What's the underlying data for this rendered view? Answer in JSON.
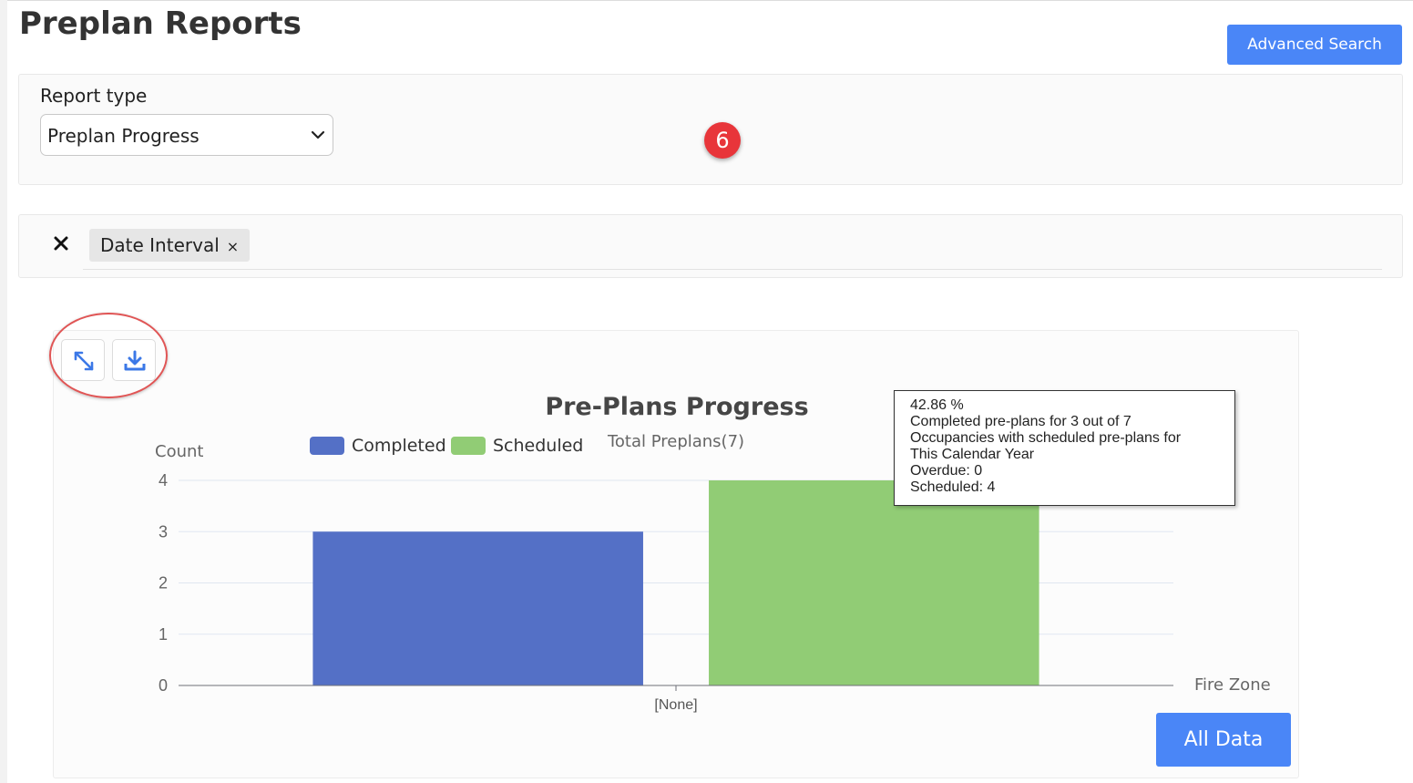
{
  "page": {
    "title": "Preplan Reports"
  },
  "header": {
    "advanced_search_label": "Advanced Search"
  },
  "report": {
    "label": "Report type",
    "selected": "Preplan Progress"
  },
  "step_badge": "6",
  "filters": {
    "chips": [
      {
        "label": "Date Interval",
        "remove": "×"
      }
    ]
  },
  "chart_tools": {
    "expand_icon": "expand-icon",
    "download_icon": "download-icon"
  },
  "chart_data": {
    "type": "bar",
    "title": "Pre-Plans Progress",
    "subtitle": "Total Preplans(7)",
    "ylabel": "Count",
    "xlabel": "Fire Zone",
    "categories": [
      "[None]"
    ],
    "series": [
      {
        "name": "Completed",
        "values": [
          3
        ],
        "color": "#5470c6"
      },
      {
        "name": "Scheduled",
        "values": [
          4
        ],
        "color": "#91cc75"
      }
    ],
    "ylim": [
      0,
      4
    ],
    "yticks": [
      0,
      1,
      2,
      3,
      4
    ],
    "grid": true,
    "legend": "top"
  },
  "tooltip": {
    "lines": [
      "42.86 %",
      "Completed pre-plans for 3 out of 7",
      "Occupancies with scheduled pre-plans for",
      "This Calendar Year",
      "Overdue: 0",
      "Scheduled: 4"
    ]
  },
  "footer": {
    "all_data_label": "All Data"
  }
}
